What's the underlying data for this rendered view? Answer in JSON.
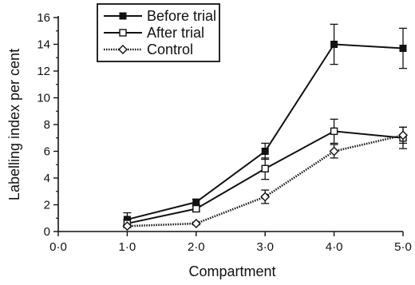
{
  "chart_data": {
    "type": "line",
    "xlabel": "Compartment",
    "ylabel": "Labelling index per cent",
    "xlim": [
      0,
      5
    ],
    "ylim": [
      0,
      16
    ],
    "x_ticks": [
      0,
      1,
      2,
      3,
      4,
      5
    ],
    "x_tick_labels": [
      "0·0",
      "1·0",
      "2·0",
      "3·0",
      "4·0",
      "5·0"
    ],
    "y_ticks": [
      0,
      2,
      4,
      6,
      8,
      10,
      12,
      14,
      16
    ],
    "y_tick_labels": [
      "0",
      "2",
      "4",
      "6",
      "8",
      "10",
      "12",
      "14",
      "16"
    ],
    "x": [
      1,
      2,
      3,
      4,
      5
    ],
    "legend_position": "top-left",
    "series": [
      {
        "name": "Before trial",
        "marker": "filled-square",
        "line": "solid",
        "values": [
          0.9,
          2.2,
          6.0,
          14.0,
          13.7
        ],
        "errors": [
          0.5,
          0.2,
          0.6,
          1.5,
          1.5
        ]
      },
      {
        "name": "After trial",
        "marker": "open-square",
        "line": "solid",
        "values": [
          0.6,
          1.7,
          4.7,
          7.5,
          7.0
        ],
        "errors": [
          0.3,
          0.2,
          0.8,
          0.9,
          0.8
        ]
      },
      {
        "name": "Control",
        "marker": "open-diamond",
        "line": "dotted",
        "values": [
          0.4,
          0.6,
          2.6,
          6.0,
          7.2
        ],
        "errors": [
          0.1,
          0.1,
          0.5,
          0.5,
          0.6
        ]
      }
    ]
  }
}
